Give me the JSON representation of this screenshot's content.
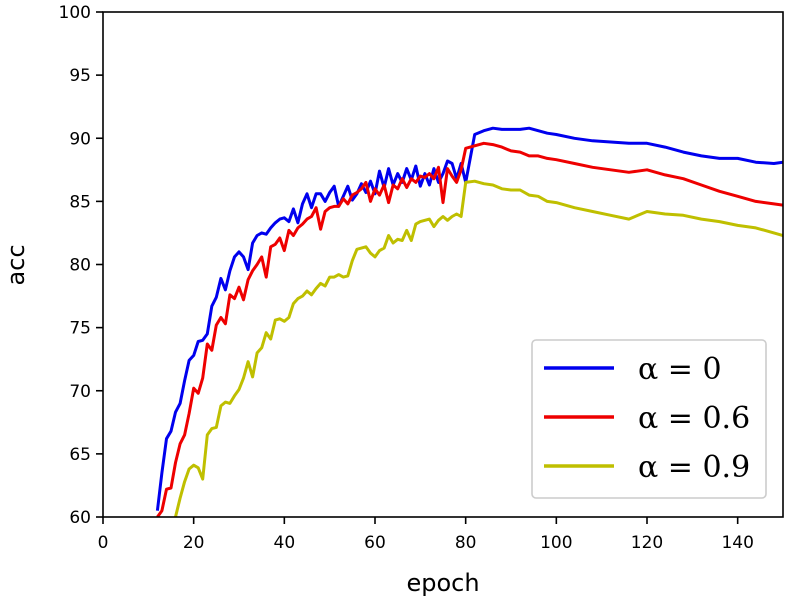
{
  "chart_data": {
    "type": "line",
    "title": "",
    "xlabel": "epoch",
    "ylabel": "acc",
    "xlim": [
      0,
      150
    ],
    "ylim": [
      60,
      100
    ],
    "xticks": [
      "0",
      "20",
      "40",
      "60",
      "80",
      "100",
      "120",
      "140"
    ],
    "yticks": [
      "60",
      "65",
      "70",
      "75",
      "80",
      "85",
      "90",
      "95",
      "100"
    ],
    "grid": false,
    "legend_position": "lower-right",
    "series": [
      {
        "name": "α = 0",
        "color": "#0000ee",
        "x": [
          12,
          13,
          14,
          15,
          16,
          17,
          18,
          19,
          20,
          21,
          22,
          23,
          24,
          25,
          26,
          27,
          28,
          29,
          30,
          31,
          32,
          33,
          34,
          35,
          36,
          37,
          38,
          39,
          40,
          41,
          42,
          43,
          44,
          45,
          46,
          47,
          48,
          49,
          50,
          51,
          52,
          53,
          54,
          55,
          56,
          57,
          58,
          59,
          60,
          61,
          62,
          63,
          64,
          65,
          66,
          67,
          68,
          69,
          70,
          71,
          72,
          73,
          74,
          75,
          76,
          77,
          78,
          79,
          80,
          82,
          84,
          86,
          88,
          90,
          92,
          94,
          96,
          98,
          100,
          104,
          108,
          112,
          116,
          120,
          124,
          128,
          132,
          136,
          140,
          144,
          148,
          150
        ],
        "values": [
          60.5,
          63.5,
          66.2,
          66.8,
          68.3,
          69.0,
          70.8,
          72.4,
          72.8,
          73.9,
          74.0,
          74.5,
          76.7,
          77.4,
          78.9,
          78.0,
          79.5,
          80.6,
          81.0,
          80.6,
          79.6,
          81.7,
          82.3,
          82.5,
          82.4,
          82.9,
          83.3,
          83.6,
          83.7,
          83.4,
          84.4,
          83.3,
          84.8,
          85.6,
          84.5,
          85.6,
          85.6,
          85.0,
          85.7,
          86.2,
          84.6,
          85.4,
          86.2,
          85.1,
          85.6,
          86.4,
          85.7,
          86.6,
          85.6,
          87.4,
          86.1,
          87.6,
          86.3,
          87.2,
          86.5,
          87.6,
          86.7,
          87.8,
          86.2,
          87.2,
          86.3,
          87.6,
          86.5,
          87.2,
          88.2,
          88.0,
          86.8,
          88.0,
          86.5,
          90.3,
          90.6,
          90.8,
          90.7,
          90.7,
          90.7,
          90.8,
          90.6,
          90.4,
          90.3,
          90.0,
          89.8,
          89.7,
          89.6,
          89.6,
          89.3,
          88.9,
          88.6,
          88.4,
          88.4,
          88.1,
          88.0,
          88.1
        ]
      },
      {
        "name": "α = 0.6",
        "color": "#ee0000",
        "x": [
          12,
          13,
          14,
          15,
          16,
          17,
          18,
          19,
          20,
          21,
          22,
          23,
          24,
          25,
          26,
          27,
          28,
          29,
          30,
          31,
          32,
          33,
          34,
          35,
          36,
          37,
          38,
          39,
          40,
          41,
          42,
          43,
          44,
          45,
          46,
          47,
          48,
          49,
          50,
          51,
          52,
          53,
          54,
          55,
          56,
          57,
          58,
          59,
          60,
          61,
          62,
          63,
          64,
          65,
          66,
          67,
          68,
          69,
          70,
          71,
          72,
          73,
          74,
          75,
          76,
          77,
          78,
          79,
          80,
          82,
          84,
          86,
          88,
          90,
          92,
          94,
          96,
          98,
          100,
          104,
          108,
          112,
          116,
          120,
          124,
          128,
          132,
          136,
          140,
          144,
          148,
          150
        ],
        "values": [
          60.0,
          60.5,
          62.2,
          62.3,
          64.3,
          65.8,
          66.5,
          68.2,
          70.2,
          69.8,
          71.0,
          73.7,
          73.2,
          75.2,
          75.8,
          75.3,
          77.6,
          77.3,
          78.2,
          77.2,
          78.8,
          79.5,
          80.0,
          80.6,
          79.0,
          81.4,
          81.6,
          82.1,
          81.1,
          82.7,
          82.3,
          82.9,
          83.2,
          83.6,
          83.8,
          84.5,
          82.8,
          84.2,
          84.5,
          84.6,
          84.6,
          85.2,
          84.8,
          85.5,
          85.7,
          86.0,
          86.5,
          85.0,
          86.0,
          85.5,
          86.3,
          84.9,
          86.3,
          86.0,
          86.8,
          86.1,
          86.8,
          86.5,
          87.0,
          86.9,
          87.2,
          86.8,
          87.7,
          84.9,
          87.6,
          87.0,
          86.5,
          87.5,
          89.2,
          89.4,
          89.6,
          89.5,
          89.3,
          89.0,
          88.9,
          88.6,
          88.6,
          88.4,
          88.3,
          88.0,
          87.7,
          87.5,
          87.3,
          87.5,
          87.1,
          86.8,
          86.3,
          85.8,
          85.4,
          85.0,
          84.8,
          84.7
        ]
      },
      {
        "name": "α = 0.9",
        "color": "#bfbf00",
        "x": [
          16,
          17,
          18,
          19,
          20,
          21,
          22,
          23,
          24,
          25,
          26,
          27,
          28,
          29,
          30,
          31,
          32,
          33,
          34,
          35,
          36,
          37,
          38,
          39,
          40,
          41,
          42,
          43,
          44,
          45,
          46,
          47,
          48,
          49,
          50,
          51,
          52,
          53,
          54,
          55,
          56,
          57,
          58,
          59,
          60,
          61,
          62,
          63,
          64,
          65,
          66,
          67,
          68,
          69,
          70,
          71,
          72,
          73,
          74,
          75,
          76,
          77,
          78,
          79,
          80,
          82,
          84,
          86,
          88,
          90,
          92,
          94,
          96,
          98,
          100,
          104,
          108,
          112,
          116,
          120,
          124,
          128,
          132,
          136,
          140,
          144,
          148,
          150
        ],
        "values": [
          60.0,
          61.5,
          62.8,
          63.8,
          64.1,
          63.9,
          63.0,
          66.5,
          67.0,
          67.1,
          68.8,
          69.1,
          69.0,
          69.6,
          70.1,
          71.0,
          72.3,
          71.1,
          73.0,
          73.4,
          74.6,
          74.1,
          75.6,
          75.7,
          75.5,
          75.8,
          76.9,
          77.3,
          77.5,
          77.9,
          77.6,
          78.1,
          78.5,
          78.3,
          79.0,
          79.0,
          79.2,
          79.0,
          79.1,
          80.3,
          81.2,
          81.3,
          81.4,
          80.9,
          80.6,
          81.1,
          81.3,
          82.3,
          81.7,
          82.0,
          81.9,
          82.7,
          81.9,
          83.2,
          83.4,
          83.5,
          83.6,
          83.0,
          83.5,
          83.8,
          83.5,
          83.8,
          84.0,
          83.8,
          86.5,
          86.6,
          86.4,
          86.3,
          86.0,
          85.9,
          85.9,
          85.5,
          85.4,
          85.0,
          84.9,
          84.5,
          84.2,
          83.9,
          83.6,
          84.2,
          84.0,
          83.9,
          83.6,
          83.4,
          83.1,
          82.9,
          82.5,
          82.3
        ]
      }
    ]
  }
}
